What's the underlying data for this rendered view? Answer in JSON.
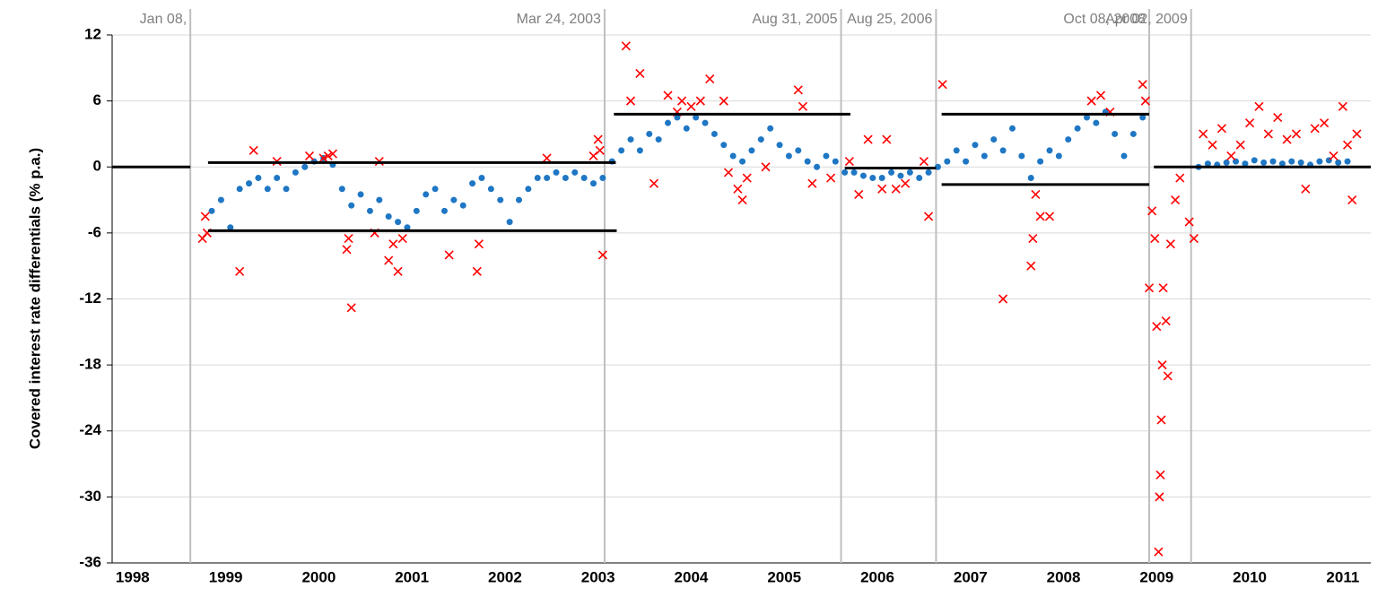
{
  "chart_data": {
    "type": "scatter",
    "ylabel": "Covered interest rate differentials (% p.a.)",
    "xlim": [
      1997.78,
      2011.3
    ],
    "ylim": [
      -36,
      12
    ],
    "xticks": [
      1998,
      1999,
      2000,
      2001,
      2002,
      2003,
      2004,
      2005,
      2006,
      2007,
      2008,
      2009,
      2010,
      2011
    ],
    "yticks": [
      -36,
      -30,
      -24,
      -18,
      -12,
      -6,
      0,
      6,
      12
    ],
    "grid": true,
    "series": [
      {
        "color": "#1f77c4",
        "marker": "circle",
        "x": [
          1998.85,
          1998.95,
          1999.05,
          1999.15,
          1999.25,
          1999.35,
          1999.45,
          1999.55,
          1999.65,
          1999.75,
          1999.85,
          1999.95,
          2000.05,
          2000.15,
          2000.25,
          2000.35,
          2000.45,
          2000.55,
          2000.65,
          2000.75,
          2000.85,
          2000.95,
          2001.05,
          2001.15,
          2001.25,
          2001.35,
          2001.45,
          2001.55,
          2001.65,
          2001.75,
          2001.85,
          2001.95,
          2002.05,
          2002.15,
          2002.25,
          2002.35,
          2002.45,
          2002.55,
          2002.65,
          2002.75,
          2002.85,
          2002.95,
          2003.05,
          2003.15,
          2003.25,
          2003.35,
          2003.45,
          2003.55,
          2003.65,
          2003.75,
          2003.85,
          2003.95,
          2004.05,
          2004.15,
          2004.25,
          2004.35,
          2004.45,
          2004.55,
          2004.65,
          2004.75,
          2004.85,
          2004.95,
          2005.05,
          2005.15,
          2005.25,
          2005.35,
          2005.45,
          2005.55,
          2005.65,
          2005.75,
          2005.85,
          2005.95,
          2006.05,
          2006.15,
          2006.25,
          2006.35,
          2006.45,
          2006.55,
          2006.65,
          2006.75,
          2006.85,
          2006.95,
          2007.05,
          2007.15,
          2007.25,
          2007.35,
          2007.45,
          2007.55,
          2007.65,
          2007.75,
          2007.85,
          2007.95,
          2008.05,
          2008.15,
          2008.25,
          2008.35,
          2008.45,
          2008.55,
          2008.65,
          2008.75,
          2008.85,
          2009.45,
          2009.55,
          2009.65,
          2009.75,
          2009.85,
          2009.95,
          2010.05,
          2010.15,
          2010.25,
          2010.35,
          2010.45,
          2010.55,
          2010.65,
          2010.75,
          2010.85,
          2010.95,
          2011.05
        ],
        "values": [
          -4,
          -3,
          -5.5,
          -2,
          -1.5,
          -1,
          -2,
          -1,
          -2,
          -0.5,
          0,
          0.5,
          0.8,
          0.2,
          -2,
          -3.5,
          -2.5,
          -4,
          -3,
          -4.5,
          -5,
          -5.5,
          -4,
          -2.5,
          -2,
          -4,
          -3,
          -3.5,
          -1.5,
          -1,
          -2,
          -3,
          -5,
          -3,
          -2,
          -1,
          -1,
          -0.5,
          -1,
          -0.5,
          -1,
          -1.5,
          -1,
          0.5,
          1.5,
          2.5,
          1.5,
          3,
          2.5,
          4,
          4.5,
          3.5,
          4.5,
          4,
          3,
          2,
          1,
          0.5,
          1.5,
          2.5,
          3.5,
          2,
          1,
          1.5,
          0.5,
          0,
          1,
          0.5,
          -0.5,
          -0.5,
          -0.8,
          -1,
          -1,
          -0.5,
          -0.8,
          -0.5,
          -1,
          -0.5,
          0,
          0.5,
          1.5,
          0.5,
          2,
          1,
          2.5,
          1.5,
          3.5,
          1,
          -1,
          0.5,
          1.5,
          1,
          2.5,
          3.5,
          4.5,
          4,
          5,
          3,
          1,
          3,
          4.5,
          0,
          0.3,
          0.2,
          0.4,
          0.5,
          0.3,
          0.6,
          0.4,
          0.5,
          0.3,
          0.5,
          0.4,
          0.2,
          0.5,
          0.6,
          0.4,
          0.5
        ]
      },
      {
        "color": "#ff0000",
        "marker": "cross",
        "x": [
          1998.75,
          1998.78,
          1998.8,
          1999.15,
          1999.3,
          1999.55,
          1999.9,
          2000.05,
          2000.1,
          2000.15,
          2000.3,
          2000.32,
          2000.35,
          2000.6,
          2000.65,
          2000.75,
          2000.8,
          2000.85,
          2000.9,
          2001.4,
          2001.7,
          2001.72,
          2002.45,
          2002.95,
          2003.0,
          2003.02,
          2003.05,
          2003.3,
          2003.35,
          2003.45,
          2003.6,
          2003.75,
          2003.85,
          2003.9,
          2004.0,
          2004.1,
          2004.2,
          2004.35,
          2004.4,
          2004.5,
          2004.55,
          2004.6,
          2004.8,
          2005.15,
          2005.2,
          2005.3,
          2005.5,
          2005.7,
          2005.8,
          2005.9,
          2006.05,
          2006.1,
          2006.2,
          2006.3,
          2006.5,
          2006.55,
          2006.7,
          2007.35,
          2007.65,
          2007.67,
          2007.7,
          2007.75,
          2007.85,
          2008.3,
          2008.4,
          2008.5,
          2008.85,
          2008.88,
          2008.92,
          2008.95,
          2008.98,
          2009.0,
          2009.02,
          2009.03,
          2009.04,
          2009.05,
          2009.06,
          2009.07,
          2009.1,
          2009.12,
          2009.15,
          2009.2,
          2009.25,
          2009.35,
          2009.4,
          2009.5,
          2009.6,
          2009.7,
          2009.8,
          2009.9,
          2010.0,
          2010.1,
          2010.2,
          2010.3,
          2010.4,
          2010.5,
          2010.6,
          2010.7,
          2010.8,
          2010.9,
          2011.0,
          2011.05,
          2011.1,
          2011.15
        ],
        "values": [
          -6.5,
          -4.5,
          -6,
          -9.5,
          1.5,
          0.5,
          1,
          0.8,
          1,
          1.2,
          -7.5,
          -6.5,
          -12.8,
          -6,
          0.5,
          -8.5,
          -7,
          -9.5,
          -6.5,
          -8,
          -9.5,
          -7,
          0.8,
          1,
          2.5,
          1.5,
          -8,
          11,
          6,
          8.5,
          -1.5,
          6.5,
          5,
          6,
          5.5,
          6,
          8,
          6,
          -0.5,
          -2,
          -3,
          -1,
          0,
          7,
          5.5,
          -1.5,
          -1,
          0.5,
          -2.5,
          2.5,
          -2,
          2.5,
          -2,
          -1.5,
          0.5,
          -4.5,
          7.5,
          -12,
          -9,
          -6.5,
          -2.5,
          -4.5,
          -4.5,
          6,
          6.5,
          5,
          7.5,
          6,
          -11,
          -4,
          -6.5,
          -14.5,
          -35,
          -30,
          -28,
          -23,
          -18,
          -11,
          -14,
          -19,
          -7,
          -3,
          -1,
          -5,
          -6.5,
          3,
          2,
          3.5,
          1,
          2,
          4,
          5.5,
          3,
          4.5,
          2.5,
          3,
          -2,
          3.5,
          4,
          1,
          5.5,
          2,
          -3,
          3
        ]
      }
    ],
    "hlines": [
      {
        "y": 0,
        "x": [
          1997.78,
          1998.62
        ]
      },
      {
        "y": 0.4,
        "x": [
          1998.81,
          2003.19
        ]
      },
      {
        "y": -5.8,
        "x": [
          1998.81,
          2003.2
        ]
      },
      {
        "y": 4.8,
        "x": [
          2003.17,
          2005.71
        ]
      },
      {
        "y": -0.1,
        "x": [
          2005.65,
          2006.63
        ]
      },
      {
        "y": 4.8,
        "x": [
          2006.69,
          2008.92
        ]
      },
      {
        "y": -1.6,
        "x": [
          2006.69,
          2008.92
        ]
      },
      {
        "y": 0,
        "x": [
          2008.97,
          2011.3
        ]
      }
    ],
    "vlines": [
      {
        "x": 1998.62,
        "label": "Jan 08,"
      },
      {
        "x": 2003.07,
        "label": "Mar 24, 2003"
      },
      {
        "x": 2005.61,
        "label": "Aug 31, 2005"
      },
      {
        "x": 2006.63,
        "label": "Aug 25, 2006"
      },
      {
        "x": 2008.92,
        "label": "Oct 08, 2008"
      },
      {
        "x": 2009.37,
        "label": "Apr 02, 2009"
      }
    ]
  }
}
